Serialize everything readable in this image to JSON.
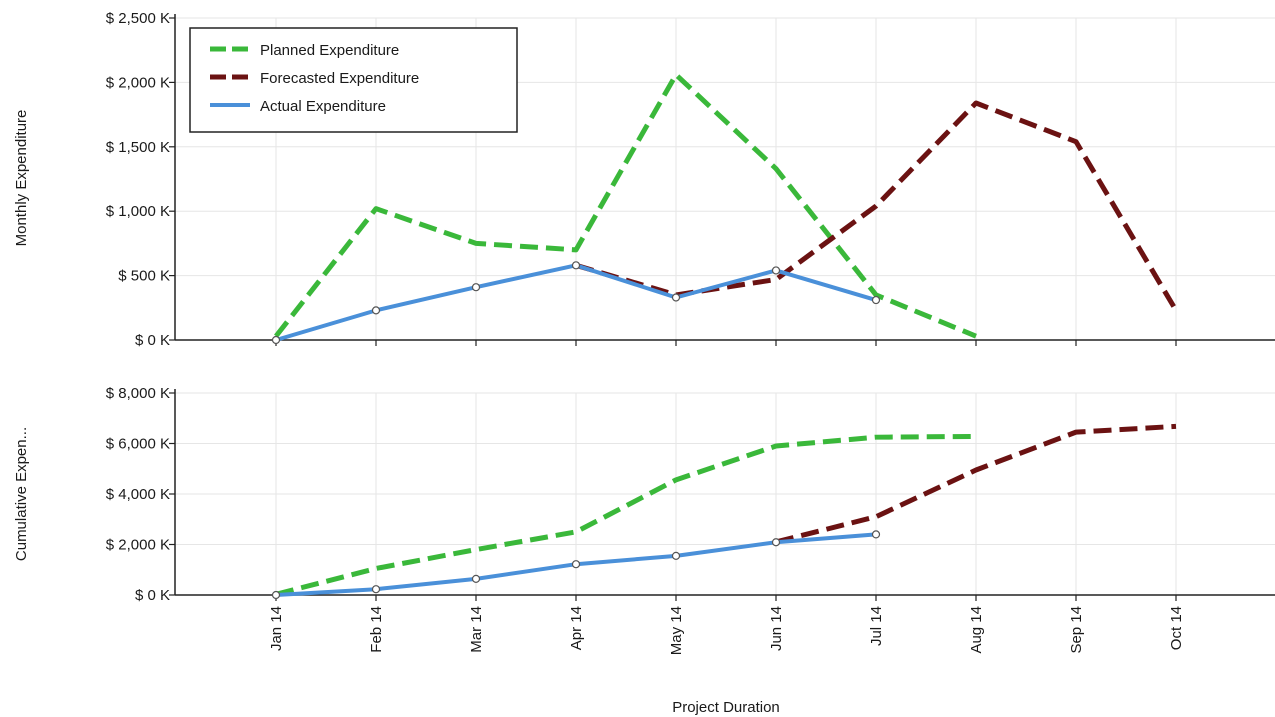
{
  "colors": {
    "planned": "#3ab83a",
    "forecasted": "#6b1212",
    "actual": "#4a90d9",
    "axis": "#222222",
    "grid": "#e6e6e6"
  },
  "chart_data": [
    {
      "type": "line",
      "ylabel": "Monthly Expenditure",
      "ylim": [
        0,
        2500
      ],
      "yticks": [
        0,
        500,
        1000,
        1500,
        2000,
        2500
      ],
      "ytick_labels": [
        "$ 0 K",
        "$ 500 K",
        "$ 1,000 K",
        "$ 1,500 K",
        "$ 2,000 K",
        "$ 2,500 K"
      ],
      "categories": [
        "Jan 14",
        "Feb 14",
        "Mar 14",
        "Apr 14",
        "May 14",
        "Jun 14",
        "Jul 14",
        "Aug 14",
        "Sep 14",
        "Oct 14"
      ],
      "legend": "top-left",
      "grid": true,
      "series": [
        {
          "key": "planned",
          "name": "Planned Expenditure",
          "style": "dashed",
          "values": [
            30,
            1020,
            750,
            700,
            2060,
            1330,
            350,
            30,
            null,
            null
          ]
        },
        {
          "key": "forecasted",
          "name": "Forecasted Expenditure",
          "style": "dashed",
          "values": [
            null,
            null,
            null,
            580,
            350,
            470,
            1040,
            1840,
            1540,
            230
          ]
        },
        {
          "key": "actual",
          "name": "Actual Expenditure",
          "style": "solid",
          "markers": true,
          "values": [
            0,
            230,
            410,
            580,
            330,
            540,
            310,
            null,
            null,
            null
          ]
        }
      ]
    },
    {
      "type": "line",
      "ylabel": "Cumulative Expen...",
      "xlabel": "Project Duration",
      "ylim": [
        0,
        8000
      ],
      "yticks": [
        0,
        2000,
        4000,
        6000,
        8000
      ],
      "ytick_labels": [
        "$ 0 K",
        "$ 2,000 K",
        "$ 4,000 K",
        "$ 6,000 K",
        "$ 8,000 K"
      ],
      "categories": [
        "Jan 14",
        "Feb 14",
        "Mar 14",
        "Apr 14",
        "May 14",
        "Jun 14",
        "Jul 14",
        "Aug 14",
        "Sep 14",
        "Oct 14"
      ],
      "grid": true,
      "series": [
        {
          "key": "planned",
          "style": "dashed",
          "values": [
            30,
            1050,
            1800,
            2500,
            4560,
            5900,
            6250,
            6280,
            null,
            null
          ]
        },
        {
          "key": "forecasted",
          "style": "dashed",
          "values": [
            null,
            null,
            null,
            null,
            null,
            2100,
            3100,
            4950,
            6450,
            6680
          ]
        },
        {
          "key": "actual",
          "style": "solid",
          "markers": true,
          "values": [
            0,
            230,
            640,
            1220,
            1550,
            2090,
            2400,
            null,
            null,
            null
          ]
        }
      ]
    }
  ]
}
